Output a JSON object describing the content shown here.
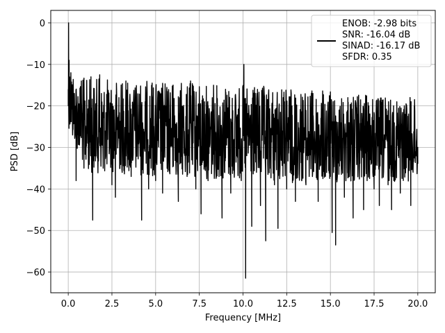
{
  "chart_data": {
    "type": "line",
    "title": "",
    "xlabel": "Frequency [MHz]",
    "ylabel": "PSD [dB]",
    "xlim": [
      -1,
      21
    ],
    "ylim": [
      -65,
      3
    ],
    "grid": true,
    "legend_position": "top-right",
    "x_ticks": [
      0.0,
      2.5,
      5.0,
      7.5,
      10.0,
      12.5,
      15.0,
      17.5,
      20.0
    ],
    "x_tick_labels": [
      "0.0",
      "2.5",
      "5.0",
      "7.5",
      "10.0",
      "12.5",
      "15.0",
      "17.5",
      "20.0"
    ],
    "y_ticks": [
      0,
      -10,
      -20,
      -30,
      -40,
      -50,
      -60
    ],
    "y_tick_labels": [
      "0",
      "−10",
      "−20",
      "−30",
      "−40",
      "−50",
      "−60"
    ],
    "series_color": "#000000",
    "legend_lines": [
      "ENOB: -2.98 bits",
      "SNR: -16.04 dB",
      "SINAD: -16.17 dB",
      "SFDR: 0.35"
    ],
    "series": [
      {
        "x_start": 0.0,
        "x_end": 20.0,
        "points": [
          [
            0.0,
            -16.0
          ],
          [
            0.02,
            0.0
          ],
          [
            0.05,
            -9.0
          ],
          [
            0.1,
            -22.0
          ],
          [
            0.15,
            -12.0
          ],
          [
            0.25,
            -27.0
          ],
          [
            0.35,
            -17.0
          ],
          [
            0.45,
            -38.0
          ],
          [
            0.6,
            -21.0
          ],
          [
            0.75,
            -14.0
          ],
          [
            0.9,
            -35.0
          ],
          [
            1.1,
            -22.0
          ],
          [
            1.3,
            -13.0
          ],
          [
            1.4,
            -47.5
          ],
          [
            1.6,
            -23.0
          ],
          [
            1.8,
            -12.5
          ],
          [
            2.0,
            -35.0
          ],
          [
            2.2,
            -24.0
          ],
          [
            2.5,
            -39.0
          ],
          [
            2.6,
            -22.0
          ],
          [
            2.7,
            -42.0
          ],
          [
            2.9,
            -18.0
          ],
          [
            3.1,
            -30.0
          ],
          [
            3.3,
            -14.0
          ],
          [
            3.6,
            -37.0
          ],
          [
            3.8,
            -20.0
          ],
          [
            4.0,
            -31.0
          ],
          [
            4.2,
            -47.5
          ],
          [
            4.4,
            -19.0
          ],
          [
            4.6,
            -40.0
          ],
          [
            4.8,
            -14.5
          ],
          [
            5.0,
            -38.0
          ],
          [
            5.2,
            -23.0
          ],
          [
            5.4,
            -41.0
          ],
          [
            5.6,
            -20.0
          ],
          [
            5.8,
            -36.0
          ],
          [
            6.0,
            -15.0
          ],
          [
            6.3,
            -43.0
          ],
          [
            6.5,
            -22.0
          ],
          [
            6.8,
            -37.0
          ],
          [
            7.0,
            -14.0
          ],
          [
            7.3,
            -40.0
          ],
          [
            7.6,
            -46.0
          ],
          [
            7.8,
            -19.0
          ],
          [
            8.0,
            -38.0
          ],
          [
            8.3,
            -21.0
          ],
          [
            8.5,
            -35.0
          ],
          [
            8.8,
            -47.0
          ],
          [
            9.0,
            -16.0
          ],
          [
            9.3,
            -41.0
          ],
          [
            9.6,
            -22.0
          ],
          [
            9.9,
            -38.0
          ],
          [
            10.05,
            -10.0
          ],
          [
            10.1,
            -28.0
          ],
          [
            10.15,
            -61.5
          ],
          [
            10.3,
            -22.0
          ],
          [
            10.5,
            -49.0
          ],
          [
            10.8,
            -17.0
          ],
          [
            11.0,
            -44.0
          ],
          [
            11.3,
            -52.5
          ],
          [
            11.5,
            -21.0
          ],
          [
            11.8,
            -39.0
          ],
          [
            12.0,
            -49.5
          ],
          [
            12.3,
            -18.0
          ],
          [
            12.5,
            -40.0
          ],
          [
            12.8,
            -20.0
          ],
          [
            13.0,
            -43.0
          ],
          [
            13.3,
            -23.0
          ],
          [
            13.6,
            -39.0
          ],
          [
            14.0,
            -17.0
          ],
          [
            14.3,
            -43.0
          ],
          [
            14.6,
            -24.0
          ],
          [
            15.0,
            -37.0
          ],
          [
            15.1,
            -50.5
          ],
          [
            15.3,
            -53.5
          ],
          [
            15.5,
            -21.0
          ],
          [
            15.8,
            -42.0
          ],
          [
            16.0,
            -18.0
          ],
          [
            16.3,
            -47.0
          ],
          [
            16.6,
            -22.0
          ],
          [
            16.9,
            -45.0
          ],
          [
            17.2,
            -20.0
          ],
          [
            17.5,
            -40.0
          ],
          [
            17.8,
            -44.0
          ],
          [
            18.0,
            -19.5
          ],
          [
            18.3,
            -39.0
          ],
          [
            18.5,
            -45.0
          ],
          [
            18.8,
            -19.0
          ],
          [
            19.0,
            -41.0
          ],
          [
            19.3,
            -22.0
          ],
          [
            19.6,
            -44.0
          ],
          [
            19.8,
            -20.0
          ],
          [
            20.0,
            -30.0
          ]
        ],
        "upper_envelope": [
          [
            0.0,
            -9.0
          ],
          [
            0.5,
            -13.0
          ],
          [
            2.5,
            -13.5
          ],
          [
            5.0,
            -14.0
          ],
          [
            7.5,
            -14.5
          ],
          [
            10.0,
            -15.0
          ],
          [
            12.5,
            -15.5
          ],
          [
            15.0,
            -16.5
          ],
          [
            17.5,
            -17.5
          ],
          [
            20.0,
            -18.0
          ]
        ],
        "lower_envelope": [
          [
            0.0,
            -25.0
          ],
          [
            1.0,
            -36.0
          ],
          [
            5.0,
            -37.0
          ],
          [
            10.0,
            -38.0
          ],
          [
            15.0,
            -39.0
          ],
          [
            20.0,
            -38.0
          ]
        ]
      }
    ]
  }
}
